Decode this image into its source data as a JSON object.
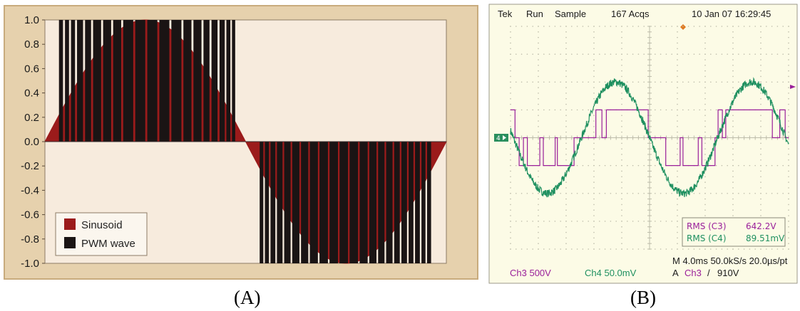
{
  "chart_data": [
    {
      "type": "line",
      "panel_label": "(A)",
      "ylim": [
        -1.0,
        1.0
      ],
      "y_ticks": [
        "1.0",
        "0.8",
        "0.6",
        "0.4",
        "0.2",
        "0.0",
        "-0.2",
        "-0.4",
        "-0.6",
        "-0.8",
        "-1.0"
      ],
      "x_period_fraction_shown": 1.0,
      "grid": false,
      "legend_placement": "bottom-left",
      "series": [
        {
          "name": "Sinusoid",
          "color": "#9b1b1b",
          "function": "sin",
          "cycles": 1
        },
        {
          "name": "PWM wave",
          "color": "#1a1414",
          "style": "pulse-width-modulated bars",
          "amplitude": 1.0,
          "positive_pulses": [
            [
              0.035,
              0.045
            ],
            [
              0.05,
              0.06
            ],
            [
              0.065,
              0.075
            ],
            [
              0.08,
              0.095
            ],
            [
              0.1,
              0.115
            ],
            [
              0.12,
              0.14
            ],
            [
              0.145,
              0.165
            ],
            [
              0.17,
              0.19
            ],
            [
              0.195,
              0.22
            ],
            [
              0.225,
              0.25
            ],
            [
              0.255,
              0.28
            ],
            [
              0.285,
              0.31
            ],
            [
              0.315,
              0.34
            ],
            [
              0.345,
              0.365
            ],
            [
              0.37,
              0.39
            ],
            [
              0.395,
              0.41
            ],
            [
              0.415,
              0.43
            ],
            [
              0.435,
              0.448
            ],
            [
              0.452,
              0.462
            ],
            [
              0.466,
              0.474
            ]
          ],
          "negative_pulses": [
            [
              0.535,
              0.544
            ],
            [
              0.548,
              0.558
            ],
            [
              0.562,
              0.574
            ],
            [
              0.578,
              0.592
            ],
            [
              0.596,
              0.612
            ],
            [
              0.616,
              0.634
            ],
            [
              0.638,
              0.656
            ],
            [
              0.66,
              0.68
            ],
            [
              0.684,
              0.705
            ],
            [
              0.709,
              0.73
            ],
            [
              0.734,
              0.755
            ],
            [
              0.759,
              0.78
            ],
            [
              0.784,
              0.804
            ],
            [
              0.808,
              0.826
            ],
            [
              0.83,
              0.846
            ],
            [
              0.85,
              0.866
            ],
            [
              0.87,
              0.884
            ],
            [
              0.888,
              0.902
            ],
            [
              0.906,
              0.918
            ],
            [
              0.922,
              0.934
            ],
            [
              0.938,
              0.948
            ],
            [
              0.952,
              0.962
            ]
          ]
        }
      ],
      "legend": [
        "Sinusoid",
        "PWM wave"
      ]
    },
    {
      "type": "line",
      "panel_label": "(B)",
      "header": {
        "brand": "Tek",
        "mode": "Run",
        "acq": "Sample",
        "count": "167 Acqs",
        "datetime": "10 Jan 07 16:29:45"
      },
      "grid": true,
      "grid_divisions": [
        10,
        8
      ],
      "ground_marker": "4",
      "series": [
        {
          "name": "Ch3",
          "color": "#9a1f9a",
          "style": "PWM square wave",
          "levels_div": [
            1.0,
            0.0,
            -1.0
          ]
        },
        {
          "name": "Ch4",
          "color": "#1f9060",
          "style": "noisy sinusoid",
          "amplitude_div": 2.0,
          "period_div": 4.9,
          "phase_div": 2.55
        }
      ],
      "measurements": [
        {
          "label": "RMS (C3)",
          "value": "642.2V",
          "color": "#9a1f9a"
        },
        {
          "label": "RMS (C4)",
          "value": "89.51mV",
          "color": "#1f9060"
        }
      ],
      "footer": {
        "ch3": "Ch3  500V",
        "ch4": "Ch4 50.0mV",
        "timebase": "M 4.0ms 50.0kS/s  20.0µs/pt",
        "trigger_a": "A",
        "trigger_ch": "Ch3",
        "trigger_slope": "/",
        "trigger_level": "910V"
      }
    }
  ],
  "captions": {
    "a": "(A)",
    "b": "(B)"
  },
  "colors": {
    "frame": "#e6d1ad",
    "plot_bg": "#f7ebdd",
    "scope_bg": "#fcfbe6",
    "scope_grid": "#bdbcaa"
  }
}
